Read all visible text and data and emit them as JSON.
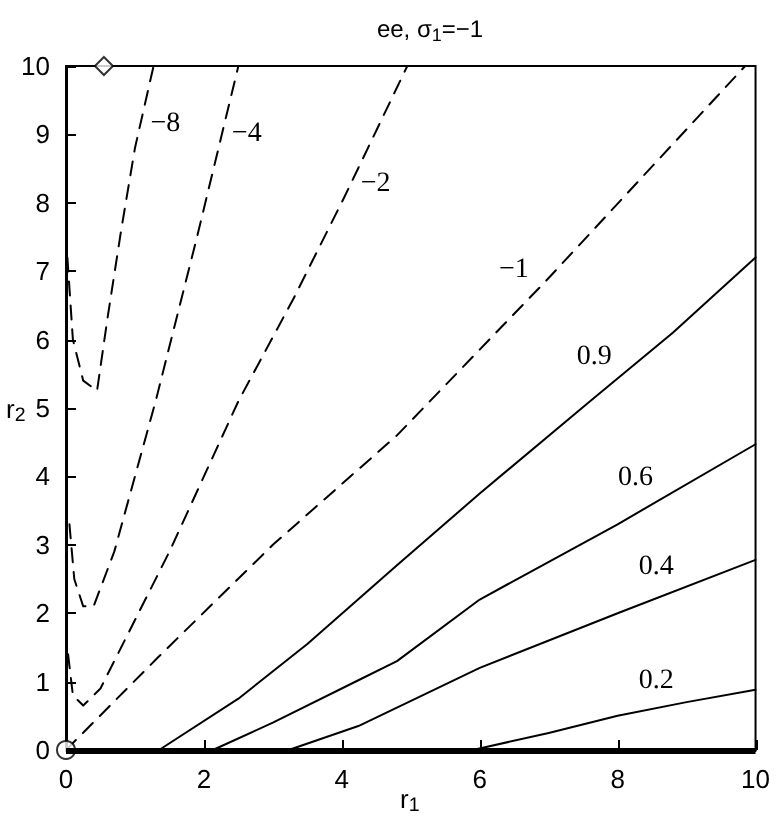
{
  "chart_data": {
    "type": "line",
    "title": "ee, σ$_{1}$=−1",
    "xlabel": "r$_{1}$",
    "ylabel": "r$_{2}$",
    "xlim": [
      0,
      10
    ],
    "xticks": [
      0,
      2,
      4,
      6,
      8,
      10
    ],
    "ylim": [
      0,
      10
    ],
    "yticks": [
      0,
      1,
      2,
      3,
      4,
      5,
      6,
      7,
      8,
      9,
      10
    ],
    "grid": false,
    "marker": "none",
    "ref_lines": [
      {
        "axis": "y",
        "value": 0,
        "color": "#000000",
        "line_style": "solid"
      }
    ],
    "series": [
      {
        "color": "#000000",
        "line_style": "dashed",
        "x": [
          0.02,
          0.1,
          0.25,
          0.45,
          0.6,
          0.8,
          1.0,
          1.27
        ],
        "values": [
          7.2,
          6.0,
          5.4,
          5.25,
          6.3,
          7.6,
          8.8,
          10
        ]
      },
      {
        "color": "#000000",
        "line_style": "dashed",
        "x": [
          0.05,
          0.12,
          0.25,
          0.4,
          0.7,
          1.0,
          1.3,
          1.9,
          2.5
        ],
        "values": [
          3.3,
          2.5,
          2.1,
          2.1,
          2.9,
          4.0,
          5.1,
          7.5,
          10
        ]
      },
      {
        "color": "#000000",
        "line_style": "dashed",
        "x": [
          0.03,
          0.1,
          0.25,
          0.5,
          1.0,
          1.5,
          2.5,
          3.3,
          4.03,
          4.95
        ],
        "values": [
          1.4,
          0.8,
          0.65,
          0.9,
          1.9,
          2.9,
          5.1,
          6.6,
          8.07,
          10
        ]
      },
      {
        "color": "#000000",
        "line_style": "dashed",
        "x": [
          0,
          1.35,
          3,
          4.8,
          7,
          9.85
        ],
        "values": [
          0,
          1.37,
          3.0,
          4.6,
          6.9,
          10
        ]
      },
      {
        "color": "#000000",
        "line_style": "solid",
        "x": [
          1.35,
          2.5,
          3.5,
          4.8,
          6,
          7.6,
          8.8,
          10
        ],
        "values": [
          0,
          0.75,
          1.55,
          2.7,
          3.75,
          5.1,
          6.1,
          7.2
        ]
      },
      {
        "color": "#000000",
        "line_style": "solid",
        "x": [
          2.13,
          3,
          4.24,
          4.8,
          6,
          8,
          10
        ],
        "values": [
          0,
          0.4,
          1.02,
          1.3,
          2.2,
          3.3,
          4.47
        ]
      },
      {
        "color": "#000000",
        "line_style": "solid",
        "x": [
          3.23,
          4.24,
          6,
          8,
          10
        ],
        "values": [
          0,
          0.35,
          1.2,
          2.0,
          2.78
        ]
      },
      {
        "color": "#000000",
        "line_style": "solid",
        "x": [
          5.9,
          7,
          8,
          9,
          10
        ],
        "values": [
          0,
          0.25,
          0.5,
          0.7,
          0.88
        ]
      },
      {
        "type": "scatter",
        "marker": "diamond",
        "color": "#000000",
        "x": [
          0.55
        ],
        "values": [
          10
        ]
      },
      {
        "type": "scatter",
        "marker": "circle",
        "color": "#000000",
        "x": [
          0
        ],
        "values": [
          0
        ]
      }
    ],
    "annotations": [
      {
        "text": "−8",
        "x": 1.08,
        "y": 9.15
      },
      {
        "text": "−4",
        "x": 2.26,
        "y": 9.0
      },
      {
        "text": "−2",
        "x": 4.13,
        "y": 8.28
      },
      {
        "text": "−1",
        "x": 6.8,
        "y": 6.69
      },
      {
        "text": "0.9",
        "x": 8.0,
        "y": 5.43
      },
      {
        "text": "0.6",
        "x": 8.6,
        "y": 3.65
      },
      {
        "text": "0.4",
        "x": 8.9,
        "y": 2.35
      },
      {
        "text": "0.2",
        "x": 8.9,
        "y": 0.68
      }
    ]
  }
}
